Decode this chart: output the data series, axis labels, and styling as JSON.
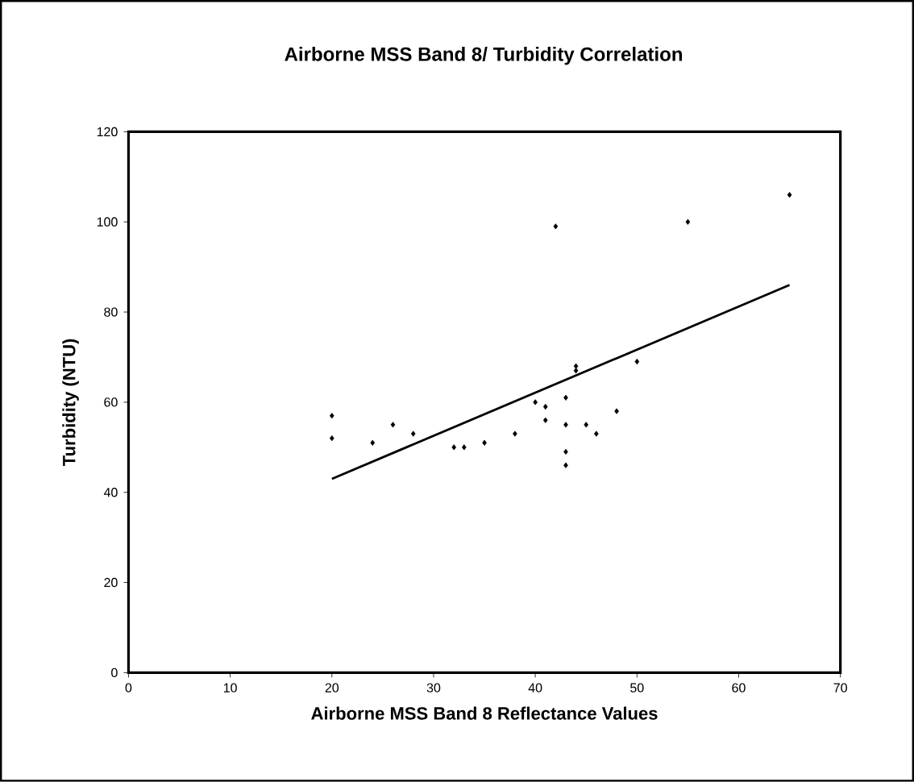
{
  "chart_data": {
    "type": "scatter",
    "title": "Airborne MSS Band 8/ Turbidity Correlation",
    "xlabel": "Airborne MSS Band 8 Reflectance Values",
    "ylabel": "Turbidity (NTU)",
    "xlim": [
      0,
      70
    ],
    "xticks": [
      0,
      10,
      20,
      30,
      40,
      50,
      60,
      70
    ],
    "ylim": [
      0,
      120
    ],
    "yticks": [
      0,
      20,
      40,
      60,
      80,
      100,
      120
    ],
    "marker": "diamond",
    "series": [
      {
        "color": "#000000",
        "x": [
          20,
          20,
          24,
          26,
          28,
          32,
          33,
          35,
          38,
          40,
          41,
          41,
          42,
          43,
          43,
          43,
          43,
          44,
          44,
          45,
          46,
          48,
          50,
          55,
          65
        ],
        "values": [
          57,
          52,
          51,
          55,
          53,
          50,
          50,
          51,
          53,
          60,
          59,
          56,
          99,
          61,
          55,
          49,
          46,
          68,
          67,
          55,
          53,
          58,
          69,
          100,
          106
        ]
      },
      {
        "type": "line",
        "color": "#000000",
        "marker": "none",
        "line_style": "solid",
        "x": [
          20,
          65
        ],
        "values": [
          43,
          86
        ]
      }
    ]
  }
}
